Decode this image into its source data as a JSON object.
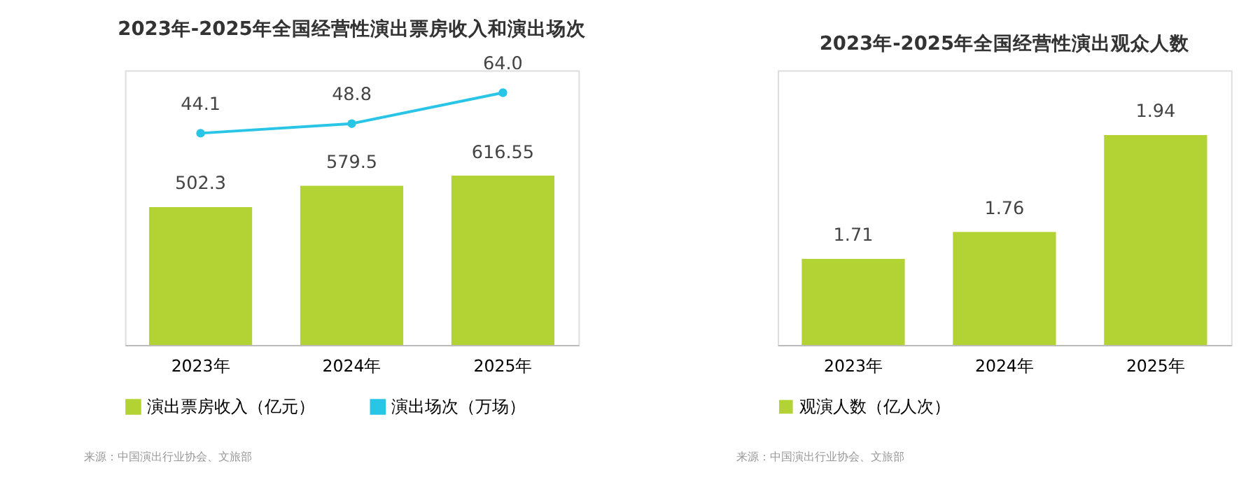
{
  "chart_data": [
    {
      "type": "bar",
      "title": "2023年-2025年全国经营性演出票房收入和演出场次",
      "categories": [
        "2023年",
        "2024年",
        "2025年"
      ],
      "series": [
        {
          "name": "演出票房收入（亿元）",
          "color": "#b3d335",
          "values": [
            502.3,
            579.5,
            616.55
          ]
        },
        {
          "name": "演出场次（万场）",
          "type": "line",
          "axis": "y2",
          "color": "#29c5e6",
          "values": [
            44.1,
            48.8,
            64.0
          ],
          "value_labels": [
            "44.1",
            "48.8",
            "64.0"
          ]
        }
      ],
      "ylim": [
        0,
        1000
      ],
      "y2lim": [
        -60,
        75
      ],
      "tick_labels": "x",
      "data_labels": true,
      "grid": false,
      "legend": "bottom",
      "marker": "circle",
      "line_style": "solid",
      "annotations": [
        "来源：中国演出行业协会、文旅部"
      ]
    },
    {
      "type": "bar",
      "title": "2023年-2025年全国经营性演出观众人数",
      "categories": [
        "2023年",
        "2024年",
        "2025年"
      ],
      "series": [
        {
          "name": "观演人数（亿人次）",
          "color": "#b3d335",
          "values": [
            1.71,
            1.76,
            1.94
          ]
        }
      ],
      "ylim": [
        1.55,
        2.06
      ],
      "tick_labels": "x",
      "data_labels": true,
      "grid": false,
      "legend": "bottom",
      "annotations": [
        "来源：中国演出行业协会、文旅部"
      ]
    }
  ]
}
